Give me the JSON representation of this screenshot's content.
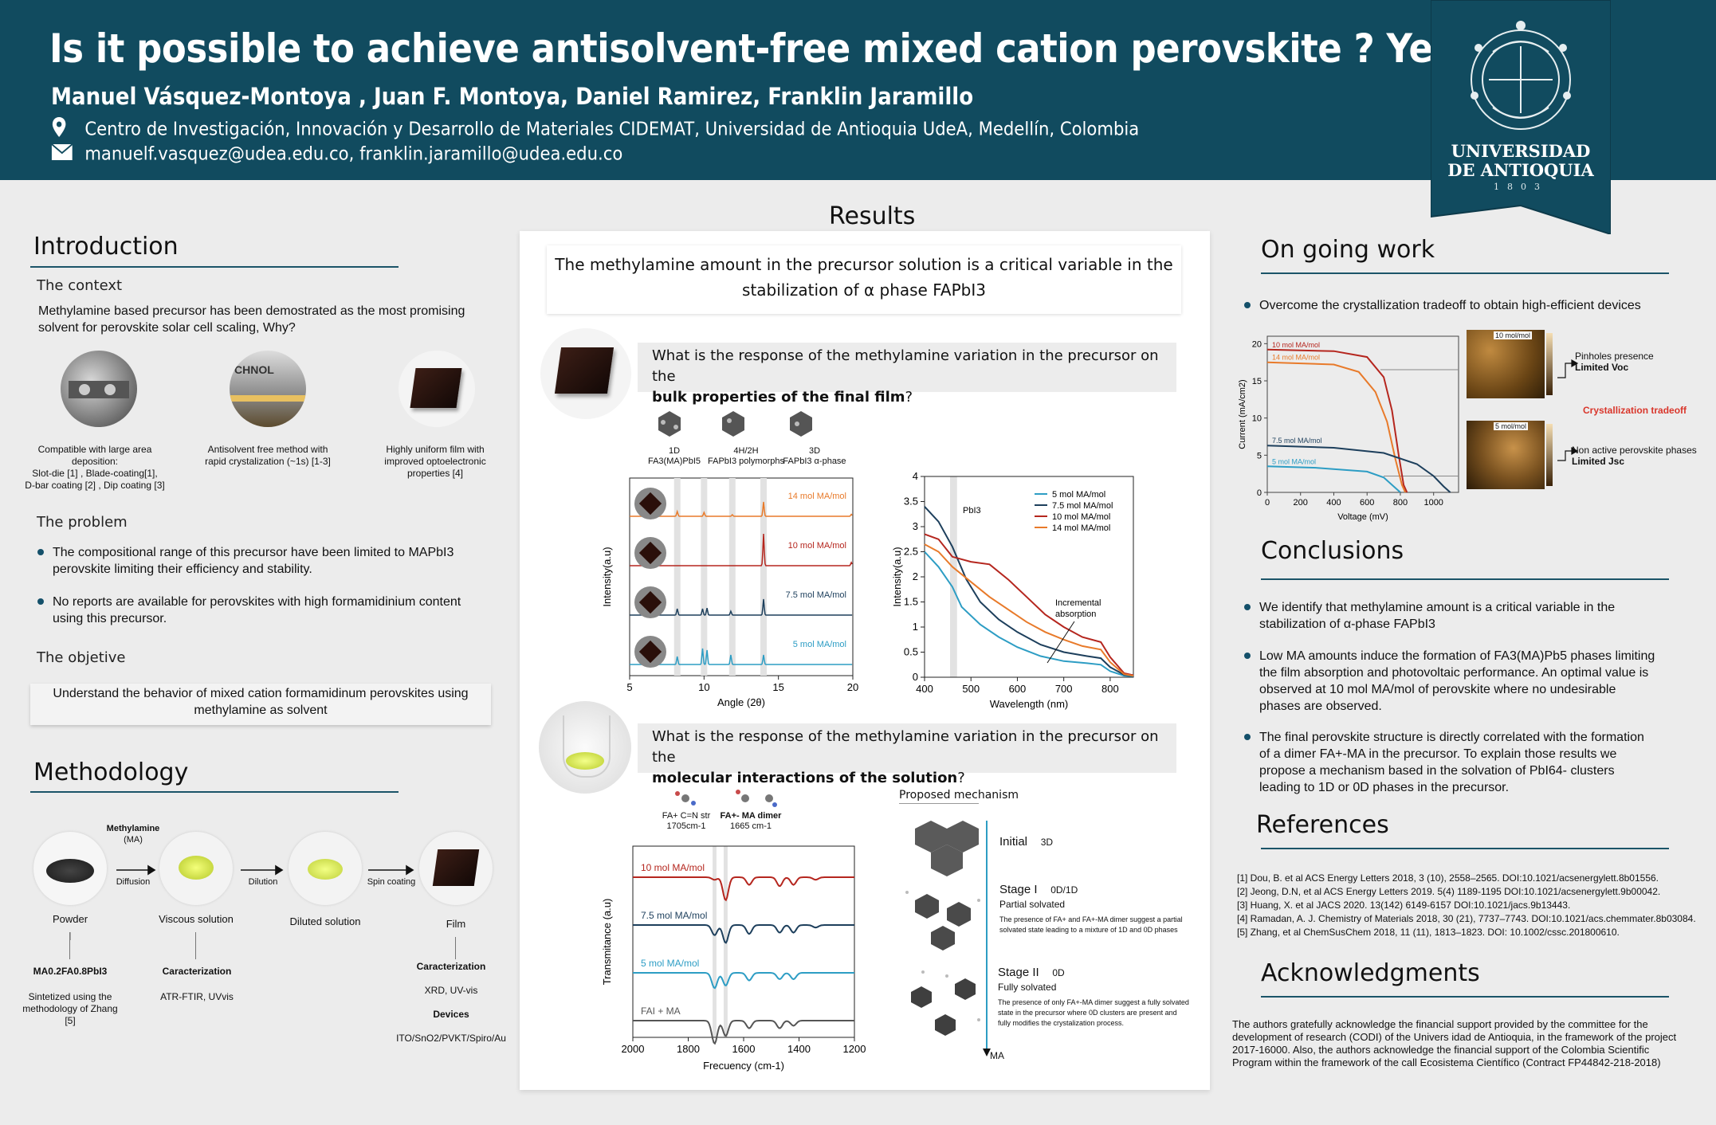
{
  "header": {
    "title": "Is it possible to achieve antisolvent-free mixed cation perovskite ?  Yes !",
    "authors": "Manuel Vásquez-Montoya , Juan F. Montoya, Daniel Ramirez, Franklin Jaramillo",
    "affiliation": "Centro de Investigación, Innovación y Desarrollo de Materiales CIDEMAT, Universidad de Antioquia UdeA, Medellín, Colombia",
    "emails": "manuelf.vasquez@udea.edu.co,  franklin.jaramillo@udea.edu.co",
    "logo_line1": "UNIVERSIDAD",
    "logo_line2": "DE ANTIOQUIA",
    "logo_year": "1803",
    "location_icon": "location-pin-icon",
    "email_icon": "envelope-icon",
    "colors": {
      "banner": "#114b5f",
      "accent": "#1b5468"
    }
  },
  "introduction": {
    "title": "Introduction",
    "context_title": "The context",
    "context_text": "Methylamine based precursor has been demostrated as the most promising solvent for perovskite solar cell scaling, Why?",
    "photo1_caption_a": "Compatible with large area deposition:",
    "photo1_caption_b": "Slot-die [1] , Blade-coating[1],",
    "photo1_caption_c": "D-bar coating [2] , Dip coating [3]",
    "photo2_label": "CHNOL",
    "photo2_caption": "Antisolvent free method with rapid crystalization (~1s) [1-3]",
    "photo3_caption": "Highly uniform film with improved optoelectronic properties [4]",
    "problem_title": "The problem",
    "problem_1": "The compositional range of this precursor have been limited to MAPbI3 perovskite limiting their efficiency and stability.",
    "problem_2": "No reports are available for perovskites with high formamidinium content using this precursor.",
    "objective_title": "The objetive",
    "objective_text": "Understand the behavior of mixed cation formamidinum perovskites using methylamine as solvent"
  },
  "methodology": {
    "title": "Methodology",
    "arrow1_top": "Methylamine",
    "arrow1_top2": "(MA)",
    "arrow1_bottom": "Diffusion",
    "arrow2": "Dilution",
    "arrow3": "Spin coating",
    "node1": "Powder",
    "node2": "Viscous solution",
    "node3": "Diluted solution",
    "node4": "Film",
    "col1_title": "MA0.2FA0.8PbI3",
    "col1_text": "Sintetized using the methodology of Zhang [5]",
    "col2_title": "Caracterization",
    "col2_text": "ATR-FTIR, UVvis",
    "col3_title": "Caracterization",
    "col3_text": "XRD, UV-vis",
    "col3_title2": "Devices",
    "col3_text2": "ITO/SnO2/PVKT/Spiro/Au"
  },
  "results": {
    "title": "Results",
    "headline": "The methylamine amount in the precursor solution is a critical variable in the stabilization of α phase FAPbI3",
    "q1_a": "What is the response of the methylamine  variation in the  precursor on the",
    "q1_b": "bulk properties of the final film",
    "q1_c": "?",
    "q2_a": "What is the response of the methylamine variation in the precursor on the",
    "q2_b": "molecular interactions of the solution",
    "q2_c": "?",
    "xrd_phase1": "1D",
    "xrd_phase1b": "FA3(MA)PbI5",
    "xrd_phase2": "4H/2H",
    "xrd_phase2b": "FAPbI3 polymorphs",
    "xrd_phase3": "3D",
    "xrd_phase3b": "FAPbI3 α-phase",
    "uv_annot1": "PbI3",
    "uv_annot2": "Incremental",
    "uv_annot3": "absorption",
    "ir_annot1": "FA+ C=N str",
    "ir_annot1b": "1705cm-1",
    "ir_annot2": "FA+- MA  dimer",
    "ir_annot2b": "1665 cm-1",
    "mech_title": "Proposed mechanism",
    "mech_initial": "Initial",
    "mech_initial_tag": "3D",
    "mech_stage1": "Stage I",
    "mech_stage1_tag": "0D/1D",
    "mech_stage1_sub": "Partial solvated",
    "mech_stage1_text": "The presence of FA+ and FA+-MA dimer suggest a partial solvated state leading to a mixture of 1D and 0D phases",
    "mech_stage2": "Stage II",
    "mech_stage2_tag": "0D",
    "mech_stage2_sub": "Fully solvated",
    "mech_stage2_text": "The presence of only FA+-MA dimer suggest a fully solvated state in the precursor where 0D clusters are present and fully modifies the crystalization process.",
    "mech_axis": "MA"
  },
  "ongoing": {
    "title": "On going work",
    "bullet": "Overcome the crystallization tradeoff to obtain high-efficient devices",
    "sem_label1": "10 mol/mol",
    "sem_label2": "5 mol/mol",
    "note1a": "Pinholes presence",
    "note1b": "Limited Voc",
    "tradeoff": "Crystallization tradeoff",
    "note2a": "Non active perovskite phases",
    "note2b": "Limited Jsc"
  },
  "conclusions": {
    "title": "Conclusions",
    "c1": "We identify that methylamine amount is a critical variable in the stabilization of α-phase FAPbI3",
    "c2": "Low MA amounts induce the formation of FA3(MA)Pb5 phases limiting the film absorption and photovoltaic performance. An optimal value is observed at 10 mol MA/mol of perovskite where no undesirable phases are observed.",
    "c3": "The final perovskite structure is directly correlated  with the formation of a dimer FA+-MA in the precursor. To explain those results we propose a mechanism based in the solvation of PbI64- clusters leading to 1D or 0D phases in the precursor."
  },
  "references": {
    "title": "References",
    "items": [
      "[1] Dou, B. et al ACS Energy Letters 2018, 3 (10), 2558–2565. DOI:10.1021/acsenergylett.8b01556.",
      "[2] Jeong, D.N, et al  ACS Energy Letters 2019. 5(4) 1189-1195 DOI:10.1021/acsenergylett.9b00042.",
      "[3] Huang, X. et al JACS 2020. 13(142) 6149-6157  DOI:10.1021/jacs.9b13443.",
      "[4] Ramadan, A. J. Chemistry of Materials 2018, 30 (21), 7737–7743. DOI:10.1021/acs.chemmater.8b03084.",
      "[5]  Zhang, et al ChemSusChem 2018, 11 (11), 1813–1823. DOI: 10.1002/cssc.201800610."
    ]
  },
  "acknowledgments": {
    "title": "Acknowledgments",
    "text": "The authors gratefully acknowledge the financial support provided by the committee for the development of research (CODI) of the Univers idad de Antioquia, in the framework of the project 2017-16000. Also, the authors acknowledge the financial support of the Colombia Scientific Program within the framework of the call Ecosistema Científico (Contract FP44842-218-2018)"
  },
  "chart_data": [
    {
      "type": "line",
      "xlabel": "Angle (2θ)",
      "ylabel": "Intensity(a.u)",
      "xlim": [
        5,
        20
      ],
      "xticks": [
        5,
        10,
        15,
        20
      ],
      "series": [
        {
          "name": "14 mol MA/mol",
          "color": "#e87a2a",
          "offset": 3,
          "peaks": [
            [
              8.2,
              0.15
            ],
            [
              10.0,
              0.12
            ],
            [
              14.0,
              0.45
            ],
            [
              11.9,
              0.05
            ],
            [
              19.9,
              0.06
            ]
          ]
        },
        {
          "name": "10 mol MA/mol",
          "color": "#b5261e",
          "offset": 2,
          "peaks": [
            [
              14.0,
              1.0
            ],
            [
              19.9,
              0.1
            ]
          ]
        },
        {
          "name": "7.5 mol MA/mol",
          "color": "#1d3f5c",
          "offset": 1,
          "peaks": [
            [
              8.2,
              0.2
            ],
            [
              9.9,
              0.2
            ],
            [
              10.2,
              0.22
            ],
            [
              11.8,
              0.12
            ],
            [
              14.0,
              0.5
            ]
          ]
        },
        {
          "name": "5 mol MA/mol",
          "color": "#2d9dc4",
          "offset": 0,
          "peaks": [
            [
              8.2,
              0.25
            ],
            [
              9.9,
              0.5
            ],
            [
              10.2,
              0.45
            ],
            [
              11.8,
              0.3
            ],
            [
              14.0,
              0.3
            ]
          ]
        }
      ]
    },
    {
      "type": "line",
      "xlabel": "Wavelength (nm)",
      "ylabel": "Intensity(a.u)",
      "xlim": [
        400,
        850
      ],
      "ylim": [
        0,
        4
      ],
      "xticks": [
        400,
        500,
        600,
        700,
        800
      ],
      "yticks": [
        0,
        0.5,
        1,
        1.5,
        2,
        2.5,
        3,
        3.5,
        4
      ],
      "legend": "top-right",
      "series": [
        {
          "name": "5 mol MA/mol",
          "color": "#2d9dc4",
          "x": [
            400,
            430,
            460,
            480,
            520,
            560,
            600,
            650,
            700,
            750,
            780,
            800,
            830,
            850
          ],
          "y": [
            2.5,
            2.2,
            1.8,
            1.4,
            1.05,
            0.8,
            0.6,
            0.42,
            0.32,
            0.28,
            0.25,
            0.12,
            0.03,
            0.02
          ]
        },
        {
          "name": "7.5 mol MA/mol",
          "color": "#1d3f5c",
          "x": [
            400,
            430,
            460,
            490,
            520,
            560,
            600,
            650,
            700,
            750,
            780,
            800,
            830,
            850
          ],
          "y": [
            3.4,
            3.1,
            2.6,
            1.95,
            1.5,
            1.15,
            0.9,
            0.65,
            0.5,
            0.42,
            0.38,
            0.2,
            0.05,
            0.03
          ]
        },
        {
          "name": "10 mol MA/mol",
          "color": "#b5261e",
          "x": [
            400,
            430,
            460,
            500,
            540,
            580,
            620,
            660,
            700,
            740,
            780,
            800,
            830,
            850
          ],
          "y": [
            2.85,
            2.75,
            2.4,
            2.3,
            2.25,
            1.95,
            1.6,
            1.25,
            1.0,
            0.8,
            0.7,
            0.4,
            0.08,
            0.04
          ]
        },
        {
          "name": "14 mol MA/mol",
          "color": "#e87a2a",
          "x": [
            400,
            430,
            460,
            500,
            540,
            580,
            620,
            660,
            700,
            740,
            780,
            800,
            830,
            850
          ],
          "y": [
            2.65,
            2.5,
            2.2,
            1.9,
            1.6,
            1.35,
            1.1,
            0.9,
            0.75,
            0.62,
            0.55,
            0.3,
            0.06,
            0.03
          ]
        }
      ]
    },
    {
      "type": "line",
      "xlabel": "Frecuency (cm-1)",
      "ylabel": "Transmitance (a.u)",
      "xlim": [
        2000,
        1200
      ],
      "xticks": [
        2000,
        1800,
        1600,
        1400,
        1200
      ],
      "series": [
        {
          "name": "10 mol MA/mol",
          "color": "#b5261e",
          "offset": 3,
          "dips": [
            [
              1705,
              0.1
            ],
            [
              1665,
              0.9
            ],
            [
              1580,
              0.3
            ],
            [
              1470,
              0.35
            ],
            [
              1420,
              0.3
            ],
            [
              1340,
              0.1
            ]
          ]
        },
        {
          "name": "7.5 mol MA/mol",
          "color": "#1d3f5c",
          "offset": 2,
          "dips": [
            [
              1705,
              0.4
            ],
            [
              1665,
              0.7
            ],
            [
              1580,
              0.35
            ],
            [
              1470,
              0.3
            ],
            [
              1420,
              0.3
            ],
            [
              1340,
              0.1
            ]
          ]
        },
        {
          "name": "5 mol MA/mol",
          "color": "#2d9dc4",
          "offset": 1,
          "dips": [
            [
              1705,
              0.6
            ],
            [
              1665,
              0.5
            ],
            [
              1580,
              0.3
            ],
            [
              1470,
              0.25
            ],
            [
              1420,
              0.25
            ]
          ]
        },
        {
          "name": "FAI + MA",
          "color": "#555555",
          "offset": 0,
          "dips": [
            [
              1705,
              0.9
            ],
            [
              1665,
              0.6
            ],
            [
              1580,
              0.3
            ],
            [
              1470,
              0.3
            ],
            [
              1420,
              0.2
            ]
          ]
        }
      ]
    },
    {
      "type": "line",
      "xlabel": "Voltage (mV)",
      "ylabel": "Current (mA/cm2)",
      "xlim": [
        0,
        1150
      ],
      "ylim": [
        0,
        21
      ],
      "xticks": [
        0,
        200,
        400,
        600,
        800,
        1000
      ],
      "yticks": [
        0,
        5,
        10,
        15,
        20
      ],
      "series": [
        {
          "name": "10 mol MA/mol",
          "color": "#b5261e",
          "x": [
            0,
            400,
            600,
            700,
            750,
            790,
            820,
            840
          ],
          "y": [
            19.2,
            19.0,
            18.2,
            15.5,
            11.0,
            5.0,
            1.0,
            0
          ]
        },
        {
          "name": "14 mol MA/mol",
          "color": "#e87a2a",
          "x": [
            0,
            400,
            550,
            650,
            720,
            770,
            810,
            830
          ],
          "y": [
            17.5,
            17.2,
            16.2,
            13.5,
            9.5,
            4.5,
            1.0,
            0
          ]
        },
        {
          "name": "7.5 mol MA/mol",
          "color": "#1d3f5c",
          "x": [
            0,
            400,
            700,
            900,
            1000,
            1060,
            1100
          ],
          "y": [
            6.3,
            6.0,
            5.3,
            3.8,
            2.2,
            0.8,
            0
          ]
        },
        {
          "name": "5 mol MA/mol",
          "color": "#2d9dc4",
          "x": [
            0,
            300,
            600,
            700,
            760,
            800
          ],
          "y": [
            3.5,
            3.3,
            2.8,
            2.0,
            0.8,
            0
          ]
        }
      ]
    }
  ]
}
